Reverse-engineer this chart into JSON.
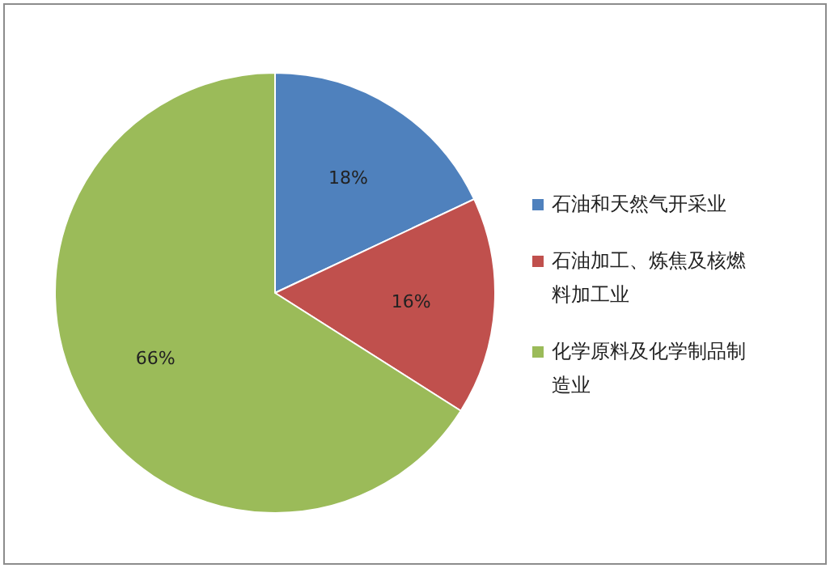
{
  "chart_data": {
    "type": "pie",
    "categories": [
      "石油和天然气开采业",
      "石油加工、炼焦及核燃料加工业",
      "化学原料及化学制品制造业"
    ],
    "values": [
      18,
      16,
      66
    ],
    "value_labels": [
      "18%",
      "16%",
      "66%"
    ],
    "colors": [
      "#4f81bd",
      "#c0504d",
      "#9bbb59"
    ],
    "legend": "right"
  }
}
